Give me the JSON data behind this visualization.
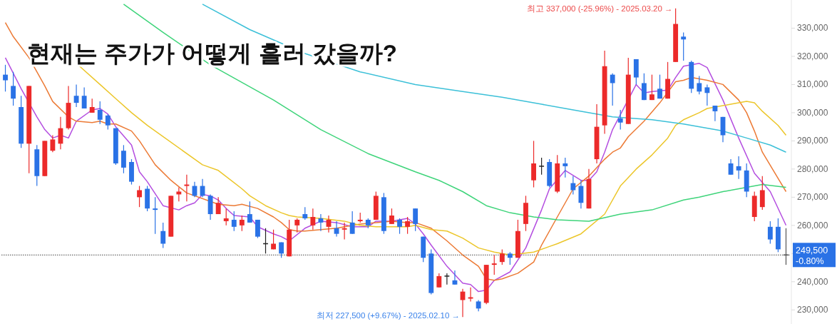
{
  "chart_data": {
    "type": "candlestick",
    "title": "현재는 주가가 어떻게 흘러 갔을까?",
    "categories": [
      null,
      null,
      null,
      null,
      null,
      null,
      null,
      null,
      null,
      null,
      null,
      null,
      null,
      null,
      null,
      null,
      null,
      null,
      null,
      null,
      null,
      null,
      null,
      null,
      null,
      null,
      null,
      null,
      null,
      null,
      null,
      null,
      null,
      null,
      null,
      null,
      null,
      null,
      null,
      null,
      null,
      null,
      null,
      null,
      null,
      null,
      null,
      null,
      null,
      null,
      null,
      null,
      null,
      null,
      null,
      null,
      null,
      null,
      null,
      null,
      null,
      null,
      null,
      null,
      null,
      null,
      null,
      null,
      null,
      null,
      null,
      null,
      null,
      null,
      null,
      null,
      null,
      null,
      null,
      null,
      null,
      null,
      null,
      null,
      null,
      null,
      null,
      null,
      null,
      null,
      null,
      null,
      null,
      null,
      null,
      null,
      null,
      null,
      null,
      null
    ],
    "ohlc": [
      [
        313500,
        317000,
        307500,
        311500
      ],
      [
        309500,
        314500,
        302500,
        305000
      ],
      [
        302000,
        306000,
        287500,
        289000
      ],
      [
        289000,
        309500,
        278500,
        309500
      ],
      [
        287000,
        288500,
        274000,
        277500
      ],
      [
        277500,
        290000,
        277500,
        290000
      ],
      [
        286500,
        292000,
        286000,
        290500
      ],
      [
        289000,
        298500,
        287000,
        294500
      ],
      [
        294500,
        309500,
        294000,
        303500
      ],
      [
        306000,
        310000,
        302000,
        303500
      ],
      [
        306000,
        309000,
        301500,
        301500
      ],
      [
        300000,
        305000,
        300000,
        302000
      ],
      [
        301000,
        304000,
        296000,
        297500
      ],
      [
        299000,
        299500,
        294000,
        295500
      ],
      [
        294500,
        294500,
        281500,
        282000
      ],
      [
        286500,
        288500,
        278500,
        280500
      ],
      [
        282500,
        283500,
        274500,
        275500
      ],
      [
        270000,
        274000,
        266500,
        272500
      ],
      [
        273000,
        274000,
        265000,
        266000
      ],
      [
        266000,
        270000,
        257000,
        265500
      ],
      [
        258000,
        261000,
        252000,
        253500
      ],
      [
        256000,
        270500,
        256000,
        270500
      ],
      [
        271000,
        273500,
        268500,
        272000
      ],
      [
        274000,
        278000,
        268500,
        274500
      ],
      [
        274000,
        275500,
        270000,
        270500
      ],
      [
        274000,
        276500,
        270000,
        270500
      ],
      [
        270500,
        271000,
        262000,
        264000
      ],
      [
        264000,
        270000,
        264000,
        268000
      ],
      [
        261500,
        266000,
        260000,
        262500
      ],
      [
        262000,
        265000,
        258000,
        259500
      ],
      [
        260000,
        263500,
        258000,
        262000
      ],
      [
        264000,
        268500,
        261000,
        261000
      ],
      [
        262000,
        262000,
        255500,
        256000
      ],
      [
        253500,
        259000,
        250000,
        253500
      ],
      [
        251500,
        258500,
        251500,
        253500
      ],
      [
        254000,
        254000,
        248500,
        250000
      ],
      [
        249000,
        262000,
        249000,
        258500
      ],
      [
        260000,
        262500,
        257500,
        262000
      ],
      [
        264000,
        266500,
        262000,
        262500
      ],
      [
        260000,
        266000,
        258500,
        263000
      ],
      [
        262500,
        264000,
        258000,
        261000
      ],
      [
        259500,
        263500,
        257500,
        262000
      ],
      [
        259000,
        261500,
        256000,
        257000
      ],
      [
        258500,
        261000,
        255000,
        259000
      ],
      [
        261000,
        265000,
        257000,
        257000
      ],
      [
        261500,
        264500,
        261000,
        262000
      ],
      [
        262000,
        262500,
        259000,
        260000
      ],
      [
        262000,
        272000,
        262000,
        270500
      ],
      [
        270000,
        271500,
        257000,
        258000
      ],
      [
        260500,
        266000,
        260500,
        263500
      ],
      [
        262000,
        262500,
        257000,
        259500
      ],
      [
        259500,
        263000,
        257000,
        261500
      ],
      [
        266000,
        266000,
        258000,
        260500
      ],
      [
        256000,
        256000,
        247000,
        248500
      ],
      [
        250000,
        251500,
        235500,
        236000
      ],
      [
        238000,
        243000,
        238000,
        242000
      ],
      [
        242000,
        243000,
        239000,
        242000
      ],
      [
        240500,
        244000,
        239000,
        239000
      ],
      [
        233500,
        237500,
        227500,
        236500
      ],
      [
        234000,
        238000,
        233000,
        234500
      ],
      [
        233000,
        233500,
        229500,
        230500
      ],
      [
        232500,
        246000,
        232000,
        246000
      ],
      [
        246000,
        249500,
        242500,
        246500
      ],
      [
        247000,
        251500,
        246000,
        250000
      ],
      [
        250000,
        250500,
        246000,
        248500
      ],
      [
        248500,
        262000,
        248500,
        258000
      ],
      [
        260500,
        270500,
        258000,
        268000
      ],
      [
        276000,
        290000,
        273500,
        282000
      ],
      [
        281000,
        284000,
        278000,
        281000
      ],
      [
        282500,
        283500,
        273500,
        274000
      ],
      [
        272000,
        285000,
        271500,
        282000
      ],
      [
        282000,
        284000,
        277000,
        281000
      ],
      [
        275000,
        277500,
        271000,
        272500
      ],
      [
        274000,
        276000,
        266000,
        268000
      ],
      [
        266000,
        280000,
        266000,
        276500
      ],
      [
        283500,
        303000,
        282000,
        295000
      ],
      [
        295500,
        322000,
        292500,
        316500
      ],
      [
        313500,
        314000,
        302500,
        310500
      ],
      [
        298000,
        301000,
        294000,
        296500
      ],
      [
        296000,
        319500,
        296000,
        313500
      ],
      [
        319000,
        319000,
        310000,
        312500
      ],
      [
        310500,
        314000,
        304500,
        304500
      ],
      [
        304500,
        313500,
        304500,
        306500
      ],
      [
        308500,
        313500,
        305000,
        305000
      ],
      [
        305000,
        318000,
        305000,
        312000
      ],
      [
        318000,
        337000,
        318000,
        331500
      ],
      [
        327000,
        328500,
        318500,
        326000
      ],
      [
        318000,
        318500,
        307000,
        308500
      ],
      [
        310500,
        313000,
        306500,
        307500
      ],
      [
        309000,
        310000,
        302500,
        307000
      ],
      [
        302500,
        302500,
        297000,
        300500
      ],
      [
        298500,
        298500,
        289500,
        292000
      ],
      [
        282000,
        283500,
        278000,
        278000
      ],
      [
        281000,
        284500,
        276500,
        279500
      ],
      [
        279500,
        282000,
        270000,
        272000
      ],
      [
        263000,
        272000,
        261500,
        270500
      ],
      [
        266500,
        277500,
        265500,
        272500
      ],
      [
        259500,
        261500,
        253500,
        255000
      ],
      [
        259500,
        262500,
        250500,
        251500
      ],
      [
        249500,
        259000,
        246000,
        249500
      ]
    ],
    "colors": [
      "#2a72e6",
      "#2a72e6",
      "#2a72e6",
      "#ec2a2a",
      "#2a72e6",
      "#ec2a2a",
      "#ec2a2a",
      "#ec2a2a",
      "#ec2a2a",
      "#2a72e6",
      "#2a72e6",
      "#ec2a2a",
      "#2a72e6",
      "#2a72e6",
      "#2a72e6",
      "#2a72e6",
      "#2a72e6",
      "#ec2a2a",
      "#2a72e6",
      "#2a72e6",
      "#2a72e6",
      "#ec2a2a",
      "#ec2a2a",
      "#ec2a2a",
      "#2a72e6",
      "#2a72e6",
      "#2a72e6",
      "#ec2a2a",
      "#ec2a2a",
      "#2a72e6",
      "#ec2a2a",
      "#2a72e6",
      "#2a72e6",
      "#222222",
      "#ec2a2a",
      "#2a72e6",
      "#ec2a2a",
      "#ec2a2a",
      "#2a72e6",
      "#ec2a2a",
      "#2a72e6",
      "#ec2a2a",
      "#2a72e6",
      "#ec2a2a",
      "#2a72e6",
      "#ec2a2a",
      "#2a72e6",
      "#ec2a2a",
      "#2a72e6",
      "#ec2a2a",
      "#2a72e6",
      "#ec2a2a",
      "#2a72e6",
      "#2a72e6",
      "#2a72e6",
      "#ec2a2a",
      "#222222",
      "#2a72e6",
      "#ec2a2a",
      "#ec2a2a",
      "#2a72e6",
      "#ec2a2a",
      "#ec2a2a",
      "#ec2a2a",
      "#2a72e6",
      "#ec2a2a",
      "#ec2a2a",
      "#ec2a2a",
      "#222222",
      "#2a72e6",
      "#ec2a2a",
      "#2a72e6",
      "#2a72e6",
      "#2a72e6",
      "#ec2a2a",
      "#ec2a2a",
      "#ec2a2a",
      "#2a72e6",
      "#2a72e6",
      "#ec2a2a",
      "#2a72e6",
      "#2a72e6",
      "#ec2a2a",
      "#2a72e6",
      "#ec2a2a",
      "#ec2a2a",
      "#2a72e6",
      "#2a72e6",
      "#2a72e6",
      "#2a72e6",
      "#2a72e6",
      "#2a72e6",
      "#2a72e6",
      "#2a72e6",
      "#2a72e6",
      "#ec2a2a",
      "#ec2a2a",
      "#2a72e6",
      "#2a72e6",
      "#555555"
    ],
    "series": [
      {
        "type": "line",
        "color": "#b44ee0",
        "values": [
          319500,
          null,
          308500,
          null,
          298500,
          294000,
          291000,
          292000,
          291000,
          297000,
          null,
          301000,
          301500,
          299500,
          295000,
          null,
          288500,
          279000,
          275500,
          null,
          267000,
          null,
          265500,
          267000,
          268000,
          271000,
          270500,
          269000,
          266000,
          263500,
          null,
          263000,
          259500,
          null,
          257000,
          256000,
          254500,
          null,
          259000,
          null,
          261500,
          null,
          261000,
          null,
          259500,
          null,
          259500,
          261500,
          null,
          261500,
          262000,
          262500,
          260500,
          257000,
          253000,
          null,
          245500,
          null,
          239500,
          239000,
          236500,
          237000,
          240500,
          null,
          243500,
          null,
          252000,
          null,
          265500,
          273000,
          null,
          279500,
          null,
          276000,
          276000,
          279000,
          286000,
          294000,
          null,
          null,
          310000,
          307000,
          307500,
          null,
          308000,
          312500,
          316500,
          317000,
          317500,
          316000,
          null,
          304500,
          null,
          291000,
          null,
          278500,
          null,
          272000,
          null,
          260000
        ]
      },
      {
        "type": "line",
        "color": "#ec7a35",
        "values": [
          332000,
          327000,
          null,
          319500,
          null,
          309500,
          304000,
          null,
          298500,
          297000,
          null,
          296500,
          297000,
          296000,
          296000,
          null,
          293500,
          290000,
          null,
          281500,
          null,
          276000,
          null,
          271500,
          null,
          null,
          268500,
          267500,
          null,
          267000,
          267500,
          null,
          266000,
          null,
          263000,
          261000,
          258500,
          258000,
          258000,
          null,
          258500,
          null,
          259000,
          null,
          260000,
          260500,
          null,
          261000,
          null,
          261500,
          null,
          261000,
          261000,
          null,
          259000,
          null,
          254500,
          null,
          249500,
          null,
          245500,
          241000,
          240500,
          241000,
          null,
          243000,
          null,
          247000,
          253000,
          null,
          263000,
          null,
          273000,
          null,
          277500,
          null,
          283500,
          286000,
          287500,
          291500,
          null,
          297000,
          null,
          303500,
          null,
          311000,
          311500,
          312500,
          null,
          311500,
          null,
          310000,
          null,
          304500,
          300000,
          293500,
          286000,
          null,
          null,
          272000
        ]
      },
      {
        "type": "line",
        "color": "#ecc62a",
        "values": [
          null,
          null,
          null,
          null,
          null,
          null,
          null,
          null,
          null,
          317500,
          null,
          null,
          310000,
          null,
          305000,
          null,
          300000,
          null,
          295500,
          null,
          null,
          null,
          null,
          null,
          null,
          281500,
          null,
          279500,
          null,
          null,
          273000,
          270500,
          null,
          267000,
          null,
          264500,
          263500,
          263000,
          null,
          null,
          262500,
          null,
          null,
          261500,
          null,
          260000,
          null,
          259500,
          null,
          259500,
          null,
          259500,
          260000,
          null,
          258500,
          null,
          258000,
          null,
          255500,
          null,
          252000,
          null,
          250500,
          null,
          249500,
          null,
          null,
          250500,
          null,
          252500,
          253500,
          null,
          null,
          257000,
          null,
          null,
          264000,
          null,
          274000,
          null,
          280000,
          null,
          285000,
          null,
          291000,
          295500,
          297500,
          null,
          300000,
          301500,
          null,
          null,
          303000,
          null,
          304000,
          303500,
          300500,
          null,
          295500,
          292000
        ]
      },
      {
        "type": "line",
        "color": "#3ed47a",
        "values": [
          null,
          null,
          null,
          null,
          null,
          null,
          null,
          null,
          null,
          null,
          null,
          null,
          null,
          null,
          null,
          338500,
          null,
          null,
          null,
          null,
          328500,
          null,
          null,
          null,
          null,
          null,
          317000,
          null,
          null,
          null,
          null,
          null,
          null,
          null,
          304500,
          null,
          null,
          null,
          null,
          null,
          294000,
          null,
          null,
          null,
          null,
          null,
          285500,
          null,
          null,
          null,
          null,
          null,
          279000,
          null,
          null,
          276000,
          null,
          null,
          272000,
          null,
          null,
          267000,
          null,
          null,
          264500,
          null,
          null,
          263000,
          null,
          null,
          262000,
          null,
          null,
          null,
          261500,
          null,
          null,
          null,
          264000,
          null,
          null,
          null,
          265500,
          null,
          null,
          null,
          269000,
          null,
          270000,
          null,
          null,
          272000,
          null,
          null,
          273500,
          null,
          274500,
          null,
          null,
          273500
        ]
      },
      {
        "type": "line",
        "color": "#3cc0d8",
        "values": [
          null,
          null,
          null,
          null,
          null,
          null,
          null,
          null,
          null,
          null,
          null,
          null,
          null,
          null,
          null,
          null,
          null,
          null,
          null,
          null,
          null,
          null,
          null,
          null,
          null,
          338500,
          null,
          null,
          null,
          null,
          null,
          329500,
          null,
          null,
          null,
          null,
          null,
          null,
          321000,
          null,
          null,
          null,
          null,
          null,
          null,
          314500,
          null,
          null,
          null,
          null,
          null,
          null,
          310000,
          null,
          null,
          null,
          null,
          null,
          307500,
          null,
          null,
          null,
          null,
          305500,
          null,
          null,
          null,
          null,
          303000,
          null,
          null,
          null,
          301000,
          null,
          null,
          null,
          null,
          298500,
          null,
          null,
          null,
          null,
          297500,
          null,
          null,
          null,
          296000,
          null,
          null,
          null,
          null,
          293500,
          null,
          null,
          291000,
          null,
          null,
          288500,
          null,
          286000
        ]
      }
    ],
    "ylim": [
      225000,
      340000
    ],
    "yticks": [
      {
        "value": 230000,
        "label": "230,000"
      },
      {
        "value": 240000,
        "label": "240,000"
      },
      {
        "value": 250000,
        "label": null
      },
      {
        "value": 260000,
        "label": "260,000"
      },
      {
        "value": 270000,
        "label": "270,000"
      },
      {
        "value": 280000,
        "label": "280,000"
      },
      {
        "value": 290000,
        "label": "290,000"
      },
      {
        "value": 300000,
        "label": "300,000"
      },
      {
        "value": 310000,
        "label": "310,000"
      },
      {
        "value": 320000,
        "label": "320,000"
      },
      {
        "value": 330000,
        "label": "330,000"
      }
    ],
    "tick_labels": "y",
    "annotations": [
      "최고 337,000 (-25.96%) - 2025.03.20 →",
      "최저 227,500 (+9.67%) - 2025.02.10 →"
    ],
    "ref_lines": [
      {
        "axis": "y",
        "value": 249500,
        "label": "249,500\n-0.80%",
        "color": "#444444",
        "line_style": "dotted"
      }
    ]
  }
}
